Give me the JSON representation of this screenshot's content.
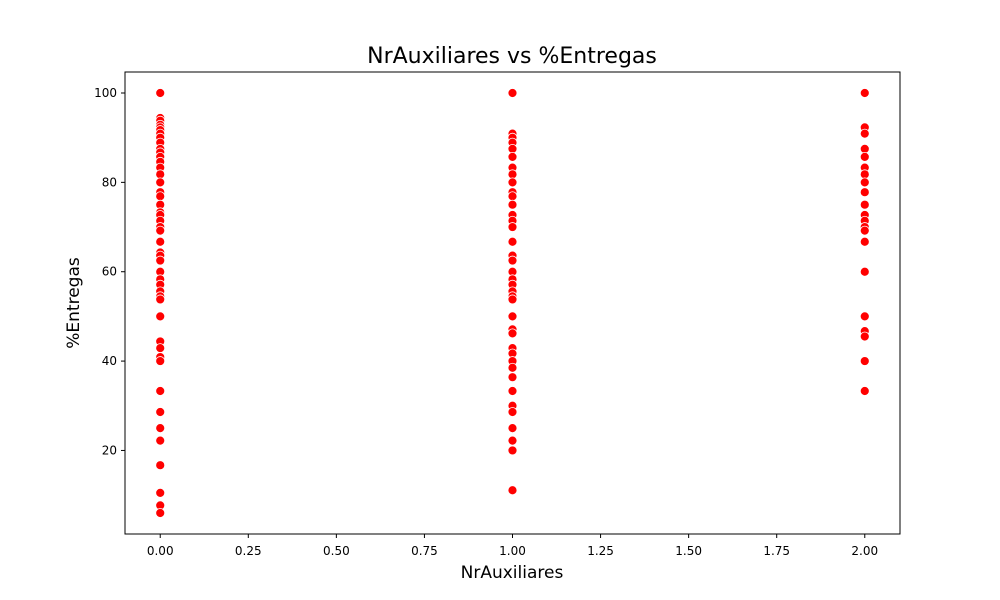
{
  "chart_data": {
    "type": "scatter",
    "title": "NrAuxiliares vs %Entregas",
    "xlabel": "NrAuxiliares",
    "ylabel": "%Entregas",
    "xlim": [
      -0.1,
      2.1
    ],
    "ylim": [
      1.3,
      104.7
    ],
    "x_ticks": [
      0.0,
      0.25,
      0.5,
      0.75,
      1.0,
      1.25,
      1.5,
      1.75,
      2.0
    ],
    "x_tick_labels": [
      "0.00",
      "0.25",
      "0.50",
      "0.75",
      "1.00",
      "1.25",
      "1.50",
      "1.75",
      "2.00"
    ],
    "y_ticks": [
      20,
      40,
      60,
      80,
      100
    ],
    "y_tick_labels": [
      "20",
      "40",
      "60",
      "80",
      "100"
    ],
    "grid": false,
    "marker_color": "#ff0000",
    "marker_edge_color": "#ffffff",
    "points": [
      {
        "x": 0,
        "y": 100
      },
      {
        "x": 0,
        "y": 94.4
      },
      {
        "x": 0,
        "y": 93.8
      },
      {
        "x": 0,
        "y": 92.9
      },
      {
        "x": 0,
        "y": 92.3
      },
      {
        "x": 0,
        "y": 91.7
      },
      {
        "x": 0,
        "y": 90.9
      },
      {
        "x": 0,
        "y": 90.0
      },
      {
        "x": 0,
        "y": 88.9
      },
      {
        "x": 0,
        "y": 87.5
      },
      {
        "x": 0,
        "y": 86.7
      },
      {
        "x": 0,
        "y": 85.7
      },
      {
        "x": 0,
        "y": 84.6
      },
      {
        "x": 0,
        "y": 83.3
      },
      {
        "x": 0,
        "y": 81.8
      },
      {
        "x": 0,
        "y": 80.0
      },
      {
        "x": 0,
        "y": 77.8
      },
      {
        "x": 0,
        "y": 76.9
      },
      {
        "x": 0,
        "y": 75.0
      },
      {
        "x": 0,
        "y": 73.3
      },
      {
        "x": 0,
        "y": 72.7
      },
      {
        "x": 0,
        "y": 71.4
      },
      {
        "x": 0,
        "y": 70.0
      },
      {
        "x": 0,
        "y": 69.2
      },
      {
        "x": 0,
        "y": 66.7
      },
      {
        "x": 0,
        "y": 64.3
      },
      {
        "x": 0,
        "y": 63.6
      },
      {
        "x": 0,
        "y": 62.5
      },
      {
        "x": 0,
        "y": 60.0
      },
      {
        "x": 0,
        "y": 58.3
      },
      {
        "x": 0,
        "y": 57.1
      },
      {
        "x": 0,
        "y": 55.6
      },
      {
        "x": 0,
        "y": 54.5
      },
      {
        "x": 0,
        "y": 53.8
      },
      {
        "x": 0,
        "y": 50.0
      },
      {
        "x": 0,
        "y": 44.4
      },
      {
        "x": 0,
        "y": 42.9
      },
      {
        "x": 0,
        "y": 40.9
      },
      {
        "x": 0,
        "y": 40.0
      },
      {
        "x": 0,
        "y": 33.3
      },
      {
        "x": 0,
        "y": 28.6
      },
      {
        "x": 0,
        "y": 25.0
      },
      {
        "x": 0,
        "y": 22.2
      },
      {
        "x": 0,
        "y": 16.7
      },
      {
        "x": 0,
        "y": 10.5
      },
      {
        "x": 0,
        "y": 7.7
      },
      {
        "x": 0,
        "y": 6.0
      },
      {
        "x": 1,
        "y": 100
      },
      {
        "x": 1,
        "y": 90.9
      },
      {
        "x": 1,
        "y": 90.0
      },
      {
        "x": 1,
        "y": 88.9
      },
      {
        "x": 1,
        "y": 87.5
      },
      {
        "x": 1,
        "y": 85.7
      },
      {
        "x": 1,
        "y": 83.3
      },
      {
        "x": 1,
        "y": 81.8
      },
      {
        "x": 1,
        "y": 80.0
      },
      {
        "x": 1,
        "y": 77.8
      },
      {
        "x": 1,
        "y": 76.9
      },
      {
        "x": 1,
        "y": 75.0
      },
      {
        "x": 1,
        "y": 72.7
      },
      {
        "x": 1,
        "y": 71.4
      },
      {
        "x": 1,
        "y": 70.0
      },
      {
        "x": 1,
        "y": 66.7
      },
      {
        "x": 1,
        "y": 63.6
      },
      {
        "x": 1,
        "y": 62.5
      },
      {
        "x": 1,
        "y": 60.0
      },
      {
        "x": 1,
        "y": 58.3
      },
      {
        "x": 1,
        "y": 57.1
      },
      {
        "x": 1,
        "y": 55.6
      },
      {
        "x": 1,
        "y": 54.5
      },
      {
        "x": 1,
        "y": 53.8
      },
      {
        "x": 1,
        "y": 50.0
      },
      {
        "x": 1,
        "y": 47.1
      },
      {
        "x": 1,
        "y": 46.2
      },
      {
        "x": 1,
        "y": 42.9
      },
      {
        "x": 1,
        "y": 41.7
      },
      {
        "x": 1,
        "y": 40.0
      },
      {
        "x": 1,
        "y": 38.5
      },
      {
        "x": 1,
        "y": 36.4
      },
      {
        "x": 1,
        "y": 33.3
      },
      {
        "x": 1,
        "y": 30.0
      },
      {
        "x": 1,
        "y": 28.6
      },
      {
        "x": 1,
        "y": 25.0
      },
      {
        "x": 1,
        "y": 22.2
      },
      {
        "x": 1,
        "y": 20.0
      },
      {
        "x": 1,
        "y": 11.1
      },
      {
        "x": 2,
        "y": 100
      },
      {
        "x": 2,
        "y": 92.3
      },
      {
        "x": 2,
        "y": 90.9
      },
      {
        "x": 2,
        "y": 87.5
      },
      {
        "x": 2,
        "y": 85.7
      },
      {
        "x": 2,
        "y": 83.3
      },
      {
        "x": 2,
        "y": 81.8
      },
      {
        "x": 2,
        "y": 80.0
      },
      {
        "x": 2,
        "y": 77.8
      },
      {
        "x": 2,
        "y": 75.0
      },
      {
        "x": 2,
        "y": 72.7
      },
      {
        "x": 2,
        "y": 71.4
      },
      {
        "x": 2,
        "y": 70.0
      },
      {
        "x": 2,
        "y": 69.2
      },
      {
        "x": 2,
        "y": 66.7
      },
      {
        "x": 2,
        "y": 60.0
      },
      {
        "x": 2,
        "y": 50.0
      },
      {
        "x": 2,
        "y": 46.7
      },
      {
        "x": 2,
        "y": 45.5
      },
      {
        "x": 2,
        "y": 40.0
      },
      {
        "x": 2,
        "y": 33.3
      }
    ]
  }
}
